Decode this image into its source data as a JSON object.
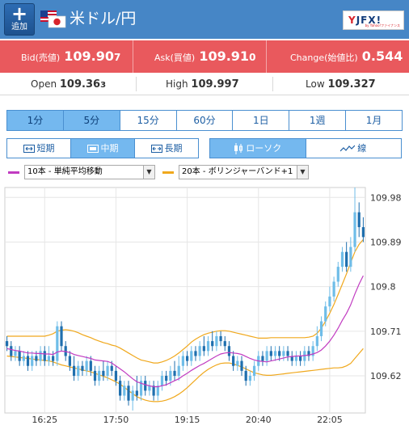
{
  "header": {
    "add_button": {
      "icon": "+",
      "label": "追加"
    },
    "pair_title": "米ドル/円",
    "logo": {
      "brand_y": "Y",
      "brand_fx": "JFX!",
      "sub": "by Yahoo!ファイナンス"
    },
    "flags": [
      "us-flag-icon",
      "jp-flag-icon"
    ],
    "bg_color": "#4686c6"
  },
  "prices": {
    "bid": {
      "label": "Bid(売値)",
      "main": "109.90",
      "last": "7"
    },
    "ask": {
      "label": "Ask(買値)",
      "main": "109.91",
      "last": "0"
    },
    "change": {
      "label": "Change(始値比)",
      "value": "0.544"
    },
    "band_color": "#e9595d"
  },
  "ohl": {
    "open": {
      "label": "Open",
      "main": "109.36",
      "last": "3"
    },
    "high": {
      "label": "High",
      "main": "109.997",
      "last": ""
    },
    "low": {
      "label": "Low",
      "main": "109.327",
      "last": ""
    }
  },
  "timeframes": [
    {
      "label": "1分",
      "active": true
    },
    {
      "label": "5分",
      "active": true
    },
    {
      "label": "15分",
      "active": false
    },
    {
      "label": "60分",
      "active": false
    },
    {
      "label": "1日",
      "active": false
    },
    {
      "label": "1週",
      "active": false
    },
    {
      "label": "1月",
      "active": false
    }
  ],
  "terms": [
    {
      "label": "短期",
      "icon": "short-term-icon",
      "active": false
    },
    {
      "label": "中期",
      "icon": "mid-term-icon",
      "active": true
    },
    {
      "label": "長期",
      "icon": "long-term-icon",
      "active": false
    }
  ],
  "chart_types": [
    {
      "label": "ローソク",
      "icon": "candlestick-icon",
      "active": true
    },
    {
      "label": "線",
      "icon": "line-chart-icon",
      "active": false
    }
  ],
  "indicators": [
    {
      "label": "10本 - 単純平均移動",
      "color": "#c13bc1"
    },
    {
      "label": "20本 - ボリンジャーバンド+1",
      "color": "#f0a81c"
    }
  ],
  "chart_data": {
    "type": "candlestick",
    "y_ticks": [
      "109.98",
      "109.89",
      "109.8",
      "109.71",
      "109.62"
    ],
    "x_ticks": [
      "16:25",
      "17:50",
      "19:15",
      "20:40",
      "22:05"
    ],
    "ylim": [
      109.545,
      110.0
    ],
    "colors": {
      "up": "#6fbde8",
      "down": "#1f6fae",
      "sma": "#c13bc1",
      "bollinger": "#f0a81c"
    },
    "candles": [
      [
        109.69,
        109.68,
        109.7,
        109.67
      ],
      [
        109.68,
        109.66,
        109.69,
        109.65
      ],
      [
        109.66,
        109.67,
        109.68,
        109.65
      ],
      [
        109.67,
        109.65,
        109.68,
        109.64
      ],
      [
        109.65,
        109.66,
        109.67,
        109.64
      ],
      [
        109.66,
        109.64,
        109.67,
        109.63
      ],
      [
        109.64,
        109.66,
        109.67,
        109.63
      ],
      [
        109.66,
        109.65,
        109.67,
        109.64
      ],
      [
        109.65,
        109.67,
        109.68,
        109.64
      ],
      [
        109.67,
        109.65,
        109.68,
        109.64
      ],
      [
        109.65,
        109.66,
        109.68,
        109.64
      ],
      [
        109.66,
        109.65,
        109.67,
        109.64
      ],
      [
        109.65,
        109.72,
        109.73,
        109.64
      ],
      [
        109.72,
        109.68,
        109.73,
        109.67
      ],
      [
        109.68,
        109.66,
        109.69,
        109.65
      ],
      [
        109.66,
        109.64,
        109.67,
        109.63
      ],
      [
        109.64,
        109.62,
        109.66,
        109.61
      ],
      [
        109.62,
        109.64,
        109.65,
        109.61
      ],
      [
        109.64,
        109.63,
        109.65,
        109.62
      ],
      [
        109.63,
        109.65,
        109.66,
        109.62
      ],
      [
        109.65,
        109.63,
        109.66,
        109.62
      ],
      [
        109.63,
        109.61,
        109.64,
        109.6
      ],
      [
        109.61,
        109.63,
        109.64,
        109.6
      ],
      [
        109.63,
        109.62,
        109.65,
        109.61
      ],
      [
        109.62,
        109.64,
        109.65,
        109.61
      ],
      [
        109.64,
        109.63,
        109.65,
        109.62
      ],
      [
        109.63,
        109.61,
        109.64,
        109.6
      ],
      [
        109.61,
        109.58,
        109.62,
        109.57
      ],
      [
        109.58,
        109.6,
        109.61,
        109.57
      ],
      [
        109.6,
        109.57,
        109.61,
        109.56
      ],
      [
        109.57,
        109.59,
        109.6,
        109.55
      ],
      [
        109.59,
        109.58,
        109.62,
        109.57
      ],
      [
        109.58,
        109.61,
        109.62,
        109.57
      ],
      [
        109.61,
        109.59,
        109.62,
        109.58
      ],
      [
        109.59,
        109.6,
        109.61,
        109.58
      ],
      [
        109.6,
        109.58,
        109.61,
        109.57
      ],
      [
        109.58,
        109.6,
        109.61,
        109.57
      ],
      [
        109.6,
        109.62,
        109.63,
        109.59
      ],
      [
        109.62,
        109.61,
        109.63,
        109.6
      ],
      [
        109.61,
        109.63,
        109.64,
        109.6
      ],
      [
        109.63,
        109.62,
        109.65,
        109.61
      ],
      [
        109.62,
        109.64,
        109.66,
        109.61
      ],
      [
        109.64,
        109.66,
        109.67,
        109.63
      ],
      [
        109.66,
        109.65,
        109.67,
        109.64
      ],
      [
        109.65,
        109.67,
        109.68,
        109.64
      ],
      [
        109.67,
        109.66,
        109.68,
        109.65
      ],
      [
        109.66,
        109.68,
        109.69,
        109.65
      ],
      [
        109.68,
        109.67,
        109.7,
        109.66
      ],
      [
        109.67,
        109.69,
        109.7,
        109.66
      ],
      [
        109.69,
        109.68,
        109.71,
        109.67
      ],
      [
        109.68,
        109.7,
        109.71,
        109.67
      ],
      [
        109.7,
        109.69,
        109.71,
        109.68
      ],
      [
        109.69,
        109.68,
        109.7,
        109.67
      ],
      [
        109.68,
        109.66,
        109.69,
        109.65
      ],
      [
        109.66,
        109.64,
        109.67,
        109.63
      ],
      [
        109.64,
        109.65,
        109.66,
        109.63
      ],
      [
        109.65,
        109.63,
        109.66,
        109.62
      ],
      [
        109.63,
        109.61,
        109.64,
        109.6
      ],
      [
        109.61,
        109.62,
        109.63,
        109.6
      ],
      [
        109.62,
        109.64,
        109.65,
        109.61
      ],
      [
        109.64,
        109.66,
        109.67,
        109.63
      ],
      [
        109.66,
        109.65,
        109.67,
        109.64
      ],
      [
        109.65,
        109.67,
        109.68,
        109.64
      ],
      [
        109.67,
        109.66,
        109.68,
        109.65
      ],
      [
        109.66,
        109.67,
        109.68,
        109.65
      ],
      [
        109.67,
        109.66,
        109.68,
        109.65
      ],
      [
        109.66,
        109.67,
        109.68,
        109.65
      ],
      [
        109.67,
        109.66,
        109.68,
        109.65
      ],
      [
        109.66,
        109.65,
        109.67,
        109.64
      ],
      [
        109.65,
        109.66,
        109.67,
        109.64
      ],
      [
        109.66,
        109.65,
        109.67,
        109.64
      ],
      [
        109.65,
        109.67,
        109.68,
        109.64
      ],
      [
        109.67,
        109.66,
        109.68,
        109.65
      ],
      [
        109.66,
        109.68,
        109.69,
        109.65
      ],
      [
        109.68,
        109.7,
        109.72,
        109.67
      ],
      [
        109.7,
        109.73,
        109.74,
        109.69
      ],
      [
        109.73,
        109.76,
        109.77,
        109.72
      ],
      [
        109.76,
        109.78,
        109.8,
        109.75
      ],
      [
        109.78,
        109.81,
        109.82,
        109.77
      ],
      [
        109.81,
        109.84,
        109.85,
        109.8
      ],
      [
        109.84,
        109.87,
        109.88,
        109.83
      ],
      [
        109.87,
        109.84,
        109.89,
        109.83
      ],
      [
        109.84,
        109.88,
        109.9,
        109.83
      ],
      [
        109.88,
        109.95,
        110.0,
        109.87
      ],
      [
        109.95,
        109.92,
        109.97,
        109.9
      ],
      [
        109.92,
        109.9,
        109.94,
        109.89
      ]
    ],
    "sma": [
      109.675,
      109.673,
      109.671,
      109.67,
      109.668,
      109.666,
      109.666,
      109.665,
      109.665,
      109.664,
      109.664,
      109.663,
      109.668,
      109.67,
      109.669,
      109.667,
      109.663,
      109.661,
      109.659,
      109.657,
      109.655,
      109.652,
      109.651,
      109.65,
      109.649,
      109.646,
      109.64,
      109.634,
      109.628,
      109.621,
      109.614,
      109.608,
      109.605,
      109.602,
      109.6,
      109.598,
      109.598,
      109.6,
      109.602,
      109.606,
      109.61,
      109.614,
      109.62,
      109.625,
      109.631,
      109.636,
      109.641,
      109.645,
      109.65,
      109.655,
      109.66,
      109.664,
      109.666,
      109.667,
      109.666,
      109.665,
      109.663,
      109.659,
      109.655,
      109.652,
      109.65,
      109.649,
      109.648,
      109.65,
      109.652,
      109.654,
      109.656,
      109.658,
      109.659,
      109.66,
      109.66,
      109.661,
      109.662,
      109.664,
      109.667,
      109.672,
      109.68,
      109.69,
      109.702,
      109.716,
      109.732,
      109.746,
      109.763,
      109.785,
      109.805,
      109.822
    ],
    "boll_upper": [
      109.7,
      109.7,
      109.7,
      109.7,
      109.7,
      109.7,
      109.7,
      109.7,
      109.7,
      109.7,
      109.702,
      109.705,
      109.71,
      109.712,
      109.713,
      109.712,
      109.71,
      109.707,
      109.703,
      109.7,
      109.697,
      109.693,
      109.69,
      109.687,
      109.685,
      109.682,
      109.68,
      109.676,
      109.671,
      109.666,
      109.661,
      109.656,
      109.652,
      109.65,
      109.648,
      109.646,
      109.646,
      109.648,
      109.651,
      109.655,
      109.66,
      109.666,
      109.673,
      109.68,
      109.688,
      109.694,
      109.699,
      109.703,
      109.706,
      109.708,
      109.71,
      109.711,
      109.711,
      109.71,
      109.708,
      109.706,
      109.704,
      109.702,
      109.7,
      109.698,
      109.696,
      109.696,
      109.696,
      109.697,
      109.697,
      109.697,
      109.697,
      109.697,
      109.697,
      109.697,
      109.697,
      109.697,
      109.698,
      109.7,
      109.706,
      109.716,
      109.73,
      109.746,
      109.764,
      109.784,
      109.805,
      109.826,
      109.848,
      109.87,
      109.885,
      109.895
    ],
    "boll_lower": [
      109.66,
      109.659,
      109.658,
      109.657,
      109.656,
      109.655,
      109.654,
      109.653,
      109.652,
      109.651,
      109.65,
      109.648,
      109.645,
      109.642,
      109.64,
      109.638,
      109.636,
      109.634,
      109.632,
      109.63,
      109.628,
      109.625,
      109.622,
      109.619,
      109.616,
      109.612,
      109.608,
      109.603,
      109.597,
      109.59,
      109.584,
      109.578,
      109.574,
      109.571,
      109.569,
      109.568,
      109.568,
      109.569,
      109.571,
      109.574,
      109.578,
      109.583,
      109.589,
      109.596,
      109.604,
      109.612,
      109.62,
      109.627,
      109.633,
      109.638,
      109.642,
      109.645,
      109.646,
      109.646,
      109.644,
      109.641,
      109.638,
      109.634,
      109.63,
      109.626,
      109.624,
      109.622,
      109.621,
      109.621,
      109.622,
      109.623,
      109.624,
      109.625,
      109.626,
      109.627,
      109.628,
      109.629,
      109.63,
      109.631,
      109.632,
      109.633,
      109.634,
      109.635,
      109.636,
      109.636,
      109.637,
      109.64,
      109.645,
      109.655,
      109.665,
      109.675
    ]
  }
}
